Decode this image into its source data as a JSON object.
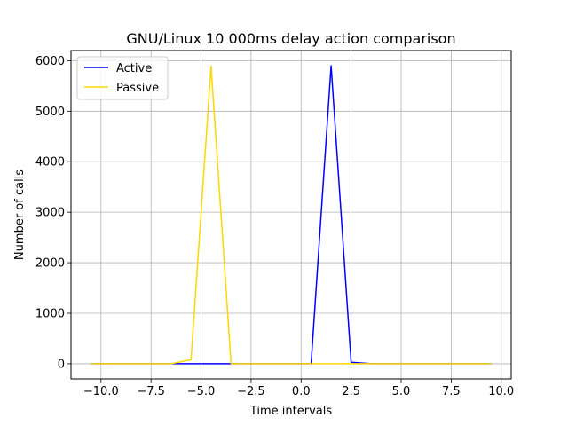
{
  "chart_data": {
    "type": "line",
    "title": "GNU/Linux 10 000ms delay action comparison",
    "xlabel": "Time intervals",
    "ylabel": "Number of calls",
    "xlim": [
      -11.5,
      10.5
    ],
    "ylim": [
      -300,
      6200
    ],
    "xticks": [
      -10.0,
      -7.5,
      -5.0,
      -2.5,
      0.0,
      2.5,
      5.0,
      7.5,
      10.0
    ],
    "xtick_labels": [
      "−10.0",
      "−7.5",
      "−5.0",
      "−2.5",
      "0.0",
      "2.5",
      "5.0",
      "7.5",
      "10.0"
    ],
    "yticks": [
      0,
      1000,
      2000,
      3000,
      4000,
      5000,
      6000
    ],
    "ytick_labels": [
      "0",
      "1000",
      "2000",
      "3000",
      "4000",
      "5000",
      "6000"
    ],
    "grid": true,
    "legend_position": "top-left",
    "x": [
      -10.5,
      -9.5,
      -8.5,
      -7.5,
      -6.5,
      -5.5,
      -4.5,
      -3.5,
      -2.5,
      -1.5,
      -0.5,
      0.5,
      1.5,
      2.5,
      3.5,
      4.5,
      5.5,
      6.5,
      7.5,
      8.5,
      9.5
    ],
    "series": [
      {
        "name": "Active",
        "color": "#0000ff",
        "values": [
          0,
          0,
          0,
          0,
          0,
          0,
          0,
          0,
          0,
          0,
          0,
          0,
          5900,
          30,
          0,
          0,
          0,
          0,
          0,
          0,
          0
        ]
      },
      {
        "name": "Passive",
        "color": "#ffd700",
        "values": [
          0,
          0,
          0,
          0,
          0,
          80,
          5890,
          0,
          0,
          0,
          0,
          0,
          0,
          0,
          0,
          0,
          0,
          0,
          0,
          0,
          0
        ]
      }
    ]
  }
}
